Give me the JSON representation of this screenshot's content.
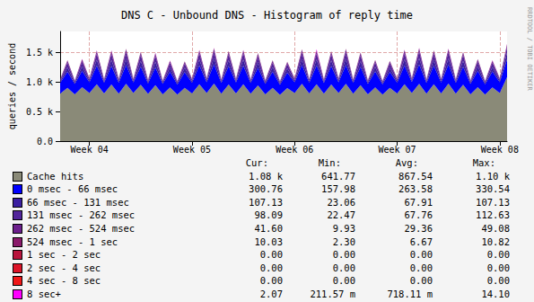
{
  "chart_data": {
    "type": "area",
    "title": "DNS C - Unbound DNS - Histogram of reply time",
    "y_label": "queries / second",
    "annotations": [
      "RRDTOOL / TOBI OETIKER"
    ],
    "stacked": true,
    "grid": true,
    "x": [
      null,
      null,
      null,
      null,
      "Week 04",
      null,
      null,
      null,
      null,
      null,
      null,
      null,
      null,
      null,
      null,
      null,
      null,
      null,
      "Week 05",
      null,
      null,
      null,
      null,
      null,
      null,
      null,
      null,
      null,
      null,
      null,
      null,
      null,
      "Week 06",
      null,
      null,
      null,
      null,
      null,
      null,
      null,
      null,
      null,
      null,
      null,
      null,
      null,
      "Week 07",
      null,
      null,
      null,
      null,
      null,
      null,
      null,
      null,
      null,
      null,
      null,
      null,
      null,
      "Week 08",
      null
    ],
    "ylim": [
      0,
      1850
    ],
    "yticks": [
      {
        "value": 0,
        "label": "0.0"
      },
      {
        "value": 500,
        "label": "0.5 k"
      },
      {
        "value": 1000,
        "label": "1.0 k"
      },
      {
        "value": 1500,
        "label": "1.5 k"
      }
    ],
    "stats_columns": [
      "Cur:",
      "Min:",
      "Avg:",
      "Max:"
    ],
    "series": [
      {
        "name": "Cache hits",
        "color": "#8a8a78",
        "stats": [
          "1.08 k",
          "641.77",
          "867.54",
          "1.10 k"
        ],
        "values": [
          800,
          900,
          790,
          910,
          810,
          960,
          805,
          955,
          800,
          965,
          810,
          950,
          795,
          945,
          790,
          905,
          785,
          900,
          805,
          960,
          810,
          970,
          800,
          955,
          805,
          960,
          800,
          940,
          790,
          900,
          780,
          895,
          810,
          965,
          805,
          960,
          800,
          955,
          810,
          965,
          800,
          945,
          790,
          905,
          785,
          900,
          805,
          960,
          810,
          965,
          800,
          960,
          805,
          970,
          800,
          950,
          790,
          910,
          785,
          905,
          810,
          1080
        ]
      },
      {
        "name": "0 msec - 66 msec",
        "color": "#0000ff",
        "stats": [
          "300.76",
          "157.98",
          "263.58",
          "330.54"
        ],
        "values": [
          180,
          270,
          175,
          275,
          185,
          315,
          180,
          310,
          185,
          320,
          180,
          305,
          178,
          300,
          175,
          268,
          172,
          265,
          182,
          318,
          185,
          325,
          180,
          312,
          183,
          315,
          180,
          300,
          176,
          270,
          172,
          262,
          184,
          320,
          182,
          316,
          180,
          310,
          185,
          322,
          180,
          305,
          176,
          272,
          174,
          268,
          182,
          318,
          186,
          328,
          180,
          315,
          184,
          322,
          180,
          306,
          176,
          275,
          174,
          270,
          185,
          301
        ]
      },
      {
        "name": "66 msec - 131 msec",
        "color": "#3a1fa0",
        "stats": [
          "107.13",
          "23.06",
          "67.91",
          "107.13"
        ],
        "values": [
          25,
          75,
          24,
          78,
          26,
          98,
          25,
          102,
          27,
          105,
          25,
          96,
          24,
          94,
          23,
          72,
          23,
          70,
          26,
          100,
          27,
          106,
          25,
          98,
          26,
          101,
          25,
          95,
          24,
          76,
          23,
          70,
          26,
          102,
          25,
          100,
          25,
          97,
          27,
          104,
          25,
          95,
          24,
          74,
          23,
          72,
          26,
          101,
          27,
          106,
          25,
          99,
          26,
          103,
          25,
          96,
          24,
          77,
          23,
          73,
          26,
          107
        ]
      },
      {
        "name": "131 msec - 262 msec",
        "color": "#52249a",
        "stats": [
          "98.09",
          "22.47",
          "67.76",
          "112.63"
        ],
        "values": [
          24,
          78,
          23,
          80,
          26,
          102,
          25,
          105,
          27,
          108,
          25,
          100,
          24,
          97,
          23,
          74,
          22,
          72,
          26,
          104,
          27,
          110,
          25,
          101,
          26,
          105,
          25,
          98,
          24,
          78,
          23,
          72,
          26,
          106,
          25,
          104,
          25,
          100,
          27,
          108,
          25,
          99,
          24,
          76,
          23,
          74,
          26,
          105,
          28,
          112,
          25,
          102,
          26,
          107,
          25,
          100,
          24,
          80,
          23,
          75,
          26,
          98
        ]
      },
      {
        "name": "262 msec - 524 msec",
        "color": "#6c1f8c",
        "stats": [
          "41.60",
          "9.93",
          "29.36",
          "49.08"
        ],
        "values": [
          10,
          33,
          10,
          34,
          11,
          44,
          10,
          46,
          11,
          48,
          10,
          43,
          10,
          42,
          10,
          32,
          10,
          31,
          11,
          45,
          11,
          48,
          10,
          44,
          11,
          46,
          10,
          42,
          10,
          33,
          10,
          31,
          11,
          47,
          10,
          45,
          10,
          44,
          11,
          48,
          10,
          43,
          10,
          33,
          10,
          32,
          11,
          46,
          11,
          49,
          10,
          45,
          11,
          47,
          10,
          43,
          10,
          34,
          10,
          32,
          11,
          41.6
        ]
      },
      {
        "name": "524 msec - 1 sec",
        "color": "#8a1a6a",
        "stats": [
          "10.03",
          "2.30",
          "6.67",
          "10.82"
        ],
        "values": [
          2.5,
          7.5,
          2.4,
          7.8,
          2.6,
          10,
          2.5,
          10.3,
          2.7,
          10.6,
          2.5,
          9.8,
          2.4,
          9.5,
          2.3,
          7.2,
          2.3,
          7,
          2.6,
          10.1,
          2.7,
          10.8,
          2.5,
          9.9,
          2.6,
          10.2,
          2.5,
          9.6,
          2.4,
          7.6,
          2.3,
          7.1,
          2.6,
          10.4,
          2.5,
          10.1,
          2.5,
          9.8,
          2.7,
          10.6,
          2.5,
          9.7,
          2.4,
          7.4,
          2.3,
          7.2,
          2.6,
          10.2,
          2.7,
          10.8,
          2.5,
          10,
          2.6,
          10.5,
          2.5,
          9.8,
          2.4,
          7.7,
          2.3,
          7.3,
          2.6,
          10.03
        ]
      },
      {
        "name": "1 sec - 2 sec",
        "color": "#b8143c",
        "stats": [
          "0.00",
          "0.00",
          "0.00",
          "0.00"
        ],
        "values": [
          0,
          0,
          0,
          0,
          0,
          0,
          0,
          0,
          0,
          0,
          0,
          0,
          0,
          0,
          0,
          0,
          0,
          0,
          0,
          0,
          0,
          0,
          0,
          0,
          0,
          0,
          0,
          0,
          0,
          0,
          0,
          0,
          0,
          0,
          0,
          0,
          0,
          0,
          0,
          0,
          0,
          0,
          0,
          0,
          0,
          0,
          0,
          0,
          0,
          0,
          0,
          0,
          0,
          0,
          0,
          0,
          0,
          0,
          0,
          0,
          0,
          0
        ]
      },
      {
        "name": "2 sec - 4 sec",
        "color": "#dc1428",
        "stats": [
          "0.00",
          "0.00",
          "0.00",
          "0.00"
        ],
        "values": [
          0,
          0,
          0,
          0,
          0,
          0,
          0,
          0,
          0,
          0,
          0,
          0,
          0,
          0,
          0,
          0,
          0,
          0,
          0,
          0,
          0,
          0,
          0,
          0,
          0,
          0,
          0,
          0,
          0,
          0,
          0,
          0,
          0,
          0,
          0,
          0,
          0,
          0,
          0,
          0,
          0,
          0,
          0,
          0,
          0,
          0,
          0,
          0,
          0,
          0,
          0,
          0,
          0,
          0,
          0,
          0,
          0,
          0,
          0,
          0,
          0,
          0
        ]
      },
      {
        "name": "4 sec - 8 sec",
        "color": "#f01818",
        "stats": [
          "0.00",
          "0.00",
          "0.00",
          "0.00"
        ],
        "values": [
          0,
          0,
          0,
          0,
          0,
          0,
          0,
          0,
          0,
          0,
          0,
          0,
          0,
          0,
          0,
          0,
          0,
          0,
          0,
          0,
          0,
          0,
          0,
          0,
          0,
          0,
          0,
          0,
          0,
          0,
          0,
          0,
          0,
          0,
          0,
          0,
          0,
          0,
          0,
          0,
          0,
          0,
          0,
          0,
          0,
          0,
          0,
          0,
          0,
          0,
          0,
          0,
          0,
          0,
          0,
          0,
          0,
          0,
          0,
          0,
          0,
          0
        ]
      },
      {
        "name": "8 sec+",
        "color": "#ff00ff",
        "stats": [
          "2.07",
          "211.57 m",
          "718.11 m",
          "14.10"
        ],
        "values": [
          0.3,
          1,
          0.3,
          1,
          0.4,
          1.5,
          0.3,
          1.4,
          0.3,
          1.6,
          0.3,
          1.3,
          0.3,
          1.2,
          0.2,
          0.9,
          0.2,
          0.9,
          0.3,
          1.5,
          0.4,
          1.6,
          0.3,
          1.4,
          0.3,
          1.5,
          0.3,
          1.2,
          0.2,
          1,
          0.2,
          0.9,
          0.3,
          1.5,
          0.3,
          14.1,
          0.3,
          1.3,
          0.4,
          1.6,
          0.3,
          1.3,
          0.2,
          1,
          0.2,
          0.9,
          0.3,
          1.5,
          0.4,
          1.6,
          0.3,
          1.4,
          0.3,
          1.5,
          0.3,
          1.3,
          0.2,
          1,
          0.2,
          0.9,
          0.3,
          2.07
        ]
      }
    ]
  }
}
